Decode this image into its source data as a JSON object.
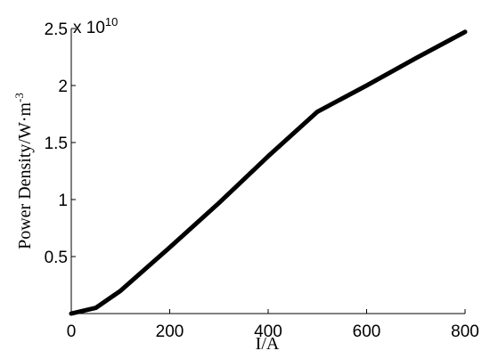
{
  "chart_data": {
    "type": "line",
    "xlabel": "I/A",
    "ylabel_main": "Power Density/W·m",
    "ylabel_exp": "-3",
    "y_multiplier_text": "x 10",
    "y_multiplier_exp": "10",
    "xlim": [
      0,
      800
    ],
    "ylim": [
      0,
      2.5
    ],
    "xticks": [
      0,
      200,
      400,
      600,
      800
    ],
    "xtick_labels": [
      "0",
      "200",
      "400",
      "600",
      "800"
    ],
    "yticks": [
      0.5,
      1,
      1.5,
      2,
      2.5
    ],
    "ytick_labels": [
      "0.5",
      "1",
      "1.5",
      "2",
      "2.5"
    ],
    "grid": false,
    "series": [
      {
        "x": [
          0,
          50,
          100,
          200,
          300,
          400,
          500,
          600,
          700,
          800
        ],
        "y": [
          0,
          0.05,
          0.2,
          0.58,
          0.97,
          1.38,
          1.77,
          2.0,
          2.24,
          2.47
        ],
        "color": "#000000"
      }
    ]
  }
}
